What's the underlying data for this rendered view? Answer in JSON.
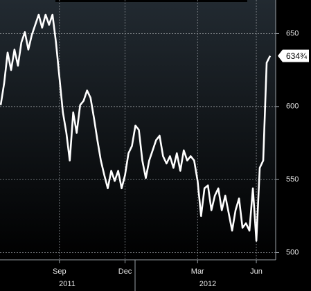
{
  "chart_data": {
    "type": "line",
    "categories": [
      null,
      null,
      null,
      null,
      null,
      null,
      null,
      null,
      null,
      null,
      null,
      null,
      null,
      null,
      null,
      null,
      null,
      "Sep",
      null,
      null,
      null,
      null,
      null,
      null,
      null,
      null,
      null,
      null,
      null,
      null,
      null,
      null,
      null,
      null,
      null,
      null,
      "Dec",
      null,
      null,
      null,
      null,
      null,
      null,
      null,
      null,
      null,
      null,
      null,
      null,
      null,
      null,
      null,
      null,
      null,
      null,
      null,
      null,
      "Mar",
      null,
      null,
      null,
      null,
      null,
      null,
      null,
      null,
      null,
      null,
      null,
      null,
      null,
      null,
      null,
      null,
      "Jun",
      null,
      null,
      null,
      null
    ],
    "year_labels": [
      "2011",
      "2012"
    ],
    "values": [
      601,
      616,
      637,
      625,
      639,
      628,
      644,
      651,
      639,
      649,
      656,
      663,
      654,
      663,
      656,
      663,
      644,
      620,
      596,
      582,
      563,
      596,
      582,
      601,
      604,
      611,
      606,
      592,
      577,
      563,
      553,
      544,
      556,
      549,
      556,
      544,
      553,
      568,
      573,
      587,
      584,
      563,
      551,
      563,
      570,
      577,
      580,
      566,
      561,
      566,
      558,
      568,
      556,
      570,
      563,
      566,
      563,
      549,
      525,
      544,
      546,
      529,
      539,
      544,
      529,
      539,
      527,
      515,
      529,
      537,
      517,
      520,
      515,
      544,
      508,
      558,
      563,
      630,
      634.75
    ],
    "value_labels": [
      null,
      null,
      null,
      null,
      null,
      null,
      null,
      null,
      null,
      null,
      null,
      null,
      null,
      null,
      null,
      null,
      null,
      null,
      null,
      null,
      null,
      null,
      null,
      null,
      null,
      null,
      null,
      null,
      null,
      null,
      null,
      null,
      null,
      null,
      null,
      null,
      null,
      null,
      null,
      null,
      null,
      null,
      null,
      null,
      null,
      null,
      null,
      null,
      null,
      null,
      null,
      null,
      null,
      null,
      null,
      null,
      null,
      null,
      null,
      null,
      null,
      null,
      null,
      null,
      null,
      null,
      null,
      null,
      null,
      null,
      null,
      null,
      null,
      null,
      null,
      null,
      null,
      null,
      "634¾"
    ],
    "color": "#ffffff",
    "ylim": [
      495,
      673
    ],
    "yticks": [
      500,
      550,
      600,
      650
    ],
    "grid": true
  }
}
